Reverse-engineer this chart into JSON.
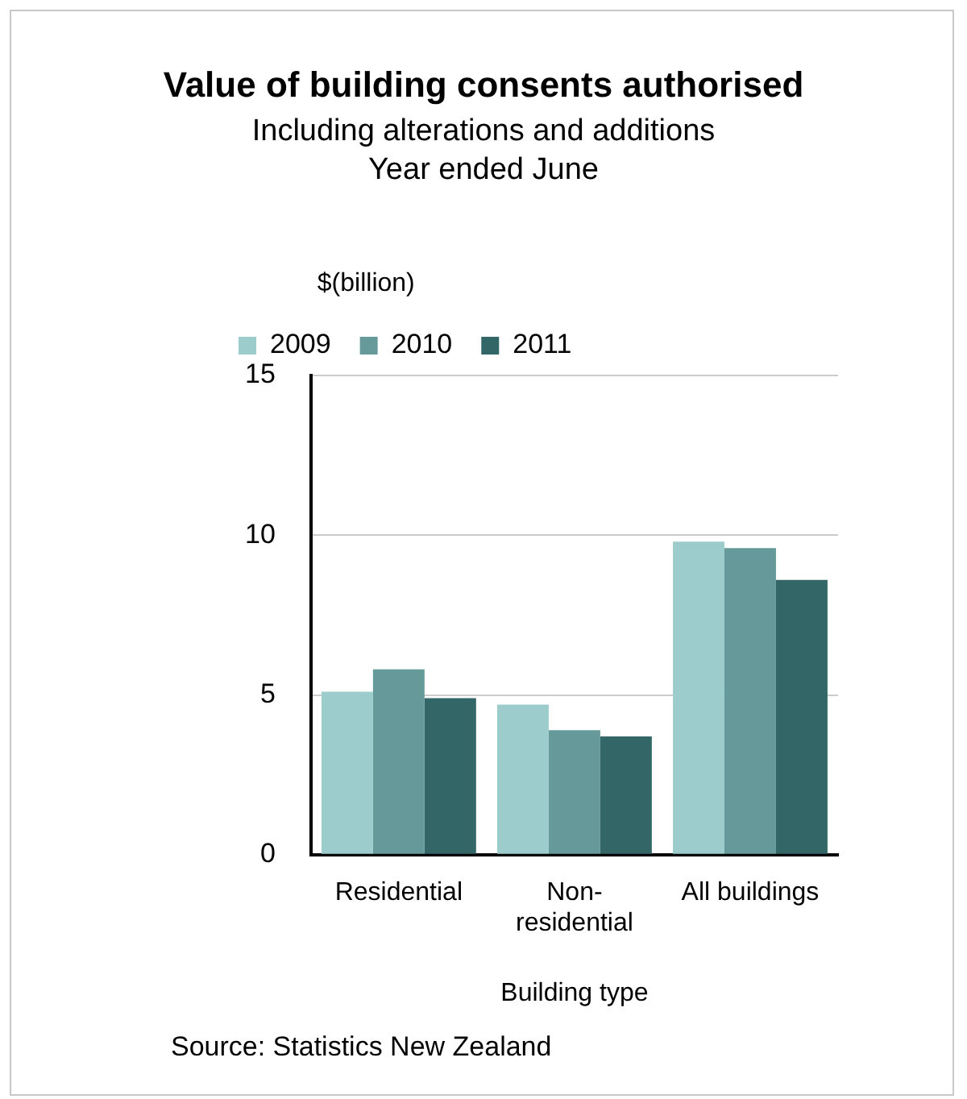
{
  "chart_data": {
    "type": "bar",
    "title": "Value of building consents authorised",
    "subtitle": "Including alterations and additions\nYear ended June",
    "ylabel": "$(billion)",
    "xlabel": "Building type",
    "categories": [
      "Residential",
      "Non-residential",
      "All buildings"
    ],
    "series": [
      {
        "name": "2009",
        "color": "#9ccccc",
        "values": [
          5.1,
          4.7,
          9.8
        ]
      },
      {
        "name": "2010",
        "color": "#669999",
        "values": [
          5.8,
          3.9,
          9.6
        ]
      },
      {
        "name": "2011",
        "color": "#336666",
        "values": [
          4.9,
          3.7,
          8.6
        ]
      }
    ],
    "ylim": [
      0,
      15
    ],
    "yticks": [
      0,
      5,
      10,
      15
    ],
    "grid": "y",
    "legend": "top left",
    "annotations": [
      "Source: Statistics New Zealand"
    ]
  }
}
